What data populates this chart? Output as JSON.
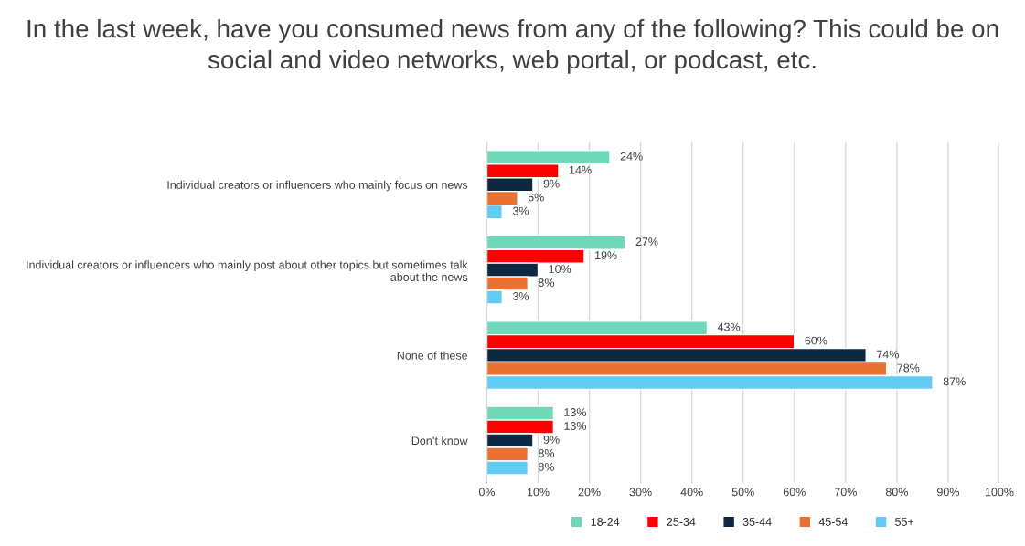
{
  "chart_data": {
    "type": "bar",
    "orientation": "horizontal",
    "title": "In the last week, have you consumed news from any of the following? This could be on social and video networks, web portal, or podcast, etc.",
    "categories": [
      "Individual creators or influencers who mainly focus on news",
      "Individual creators or influencers who mainly post about other topics but sometimes talk about the news",
      "None of these",
      "Don’t know"
    ],
    "series": [
      {
        "name": "18-24",
        "color": "#6fd8b8",
        "values": [
          24,
          27,
          43,
          13
        ],
        "value_labels": [
          "24%",
          "27%",
          "43%",
          "13%"
        ]
      },
      {
        "name": "25-34",
        "color": "#ff0000",
        "values": [
          14,
          19,
          60,
          13
        ],
        "value_labels": [
          "14%",
          "19%",
          "60%",
          "13%"
        ]
      },
      {
        "name": "35-44",
        "color": "#0e2841",
        "values": [
          9,
          10,
          74,
          9
        ],
        "value_labels": [
          "9%",
          "10%",
          "74%",
          "9%"
        ]
      },
      {
        "name": "45-54",
        "color": "#e97132",
        "values": [
          6,
          8,
          78,
          8
        ],
        "value_labels": [
          "6%",
          "8%",
          "78%",
          "8%"
        ]
      },
      {
        "name": "55+",
        "color": "#61cbf3",
        "values": [
          3,
          3,
          87,
          8
        ],
        "value_labels": [
          "3%",
          "3%",
          "87%",
          "8%"
        ]
      }
    ],
    "xlim": [
      0,
      100
    ],
    "xticks": [
      {
        "value": 0,
        "label": "0%"
      },
      {
        "value": 10,
        "label": "10%"
      },
      {
        "value": 20,
        "label": "20%"
      },
      {
        "value": 30,
        "label": "30%"
      },
      {
        "value": 40,
        "label": "40%"
      },
      {
        "value": 50,
        "label": "50%"
      },
      {
        "value": 60,
        "label": "60%"
      },
      {
        "value": 70,
        "label": "70%"
      },
      {
        "value": 80,
        "label": "80%"
      },
      {
        "value": 90,
        "label": "90%"
      },
      {
        "value": 100,
        "label": "100%"
      }
    ],
    "grid": "x",
    "legend": "bottom"
  }
}
